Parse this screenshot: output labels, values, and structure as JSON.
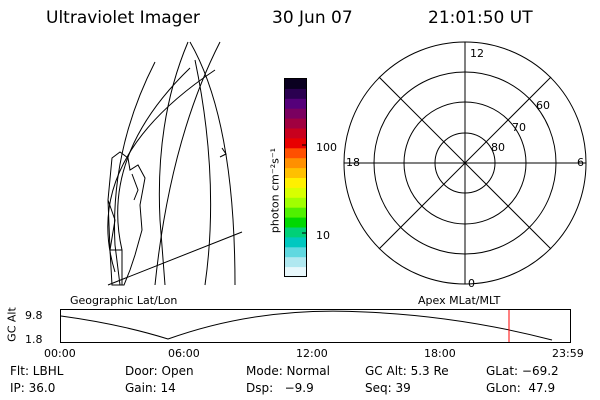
{
  "header": {
    "title": "Ultraviolet Imager",
    "date": "30 Jun 07",
    "time": "21:01:50 UT"
  },
  "geo_panel": {
    "label": "Geographic Lat/Lon"
  },
  "colorbar": {
    "unit_label": "photon cm⁻²s⁻¹",
    "ticks": [
      "100",
      "10"
    ],
    "colors": [
      "#0a0020",
      "#2a0050",
      "#55007a",
      "#7a0060",
      "#a00040",
      "#c8001e",
      "#e80000",
      "#ff5000",
      "#ff9000",
      "#ffc000",
      "#fff000",
      "#d8ff00",
      "#a0ff00",
      "#50f000",
      "#00d800",
      "#00d078",
      "#00c8c0",
      "#60d8e0",
      "#b0e8f0",
      "#e8f8fc"
    ]
  },
  "polar_panel": {
    "label": "Apex MLat/MLT",
    "mlt_labels": [
      "12",
      "18",
      "6",
      "0"
    ],
    "lat_labels": [
      "60",
      "70",
      "80"
    ]
  },
  "altitude_plot": {
    "ylabel": "GC Alt",
    "y_ticks": [
      "9.8",
      "1.8"
    ],
    "x_ticks": [
      "00:00",
      "06:00",
      "12:00",
      "18:00",
      "23:59"
    ],
    "current_marker_time": "21:01:50",
    "marker_color": "#ff0000"
  },
  "info": {
    "flt": "Flt: LBHL",
    "door": "Door: Open",
    "mode": "Mode: Normal",
    "gc_alt": "GC Alt: 5.3 Re",
    "glat": "GLat: −69.2",
    "ip": "IP: 36.0",
    "gain": "Gain: 14",
    "dsp": "Dsp:   −9.9",
    "seq": "Seq: 39",
    "glon": "GLon:  47.9"
  }
}
